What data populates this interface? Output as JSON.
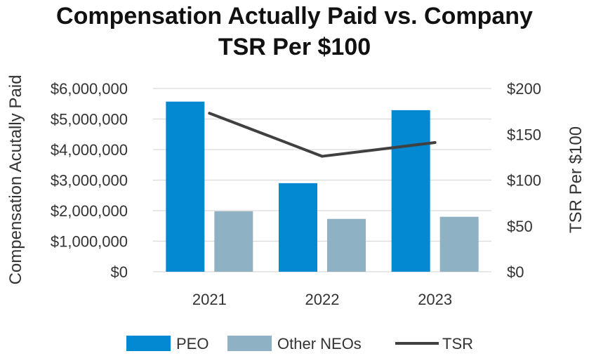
{
  "chart_data": {
    "type": "bar",
    "title_line1": "Compensation Actually Paid vs. Company",
    "title_line2": "TSR Per $100",
    "categories": [
      "2021",
      "2022",
      "2023"
    ],
    "series": [
      {
        "name": "PEO",
        "type": "bar",
        "axis": "left",
        "color": "#0289D1",
        "values": [
          5570000,
          2900000,
          5290000
        ]
      },
      {
        "name": "Other NEOs",
        "type": "bar",
        "axis": "left",
        "color": "#8FB1C4",
        "values": [
          1980000,
          1730000,
          1800000
        ]
      },
      {
        "name": "TSR",
        "type": "line",
        "axis": "right",
        "color": "#404040",
        "values": [
          173,
          126,
          141
        ]
      }
    ],
    "ylabel_left": "Compensation Acutally Paid",
    "ylabel_right": "TSR Per $100",
    "ylim_left": [
      0,
      6000000
    ],
    "ylim_right": [
      0,
      200
    ],
    "yticks_left": [
      "$0",
      "$1,000,000",
      "$2,000,000",
      "$3,000,000",
      "$4,000,000",
      "$5,000,000",
      "$6,000,000"
    ],
    "yticks_right": [
      "$0",
      "$50",
      "$100",
      "$150",
      "$200"
    ],
    "grid": true,
    "legend_position": "bottom"
  }
}
